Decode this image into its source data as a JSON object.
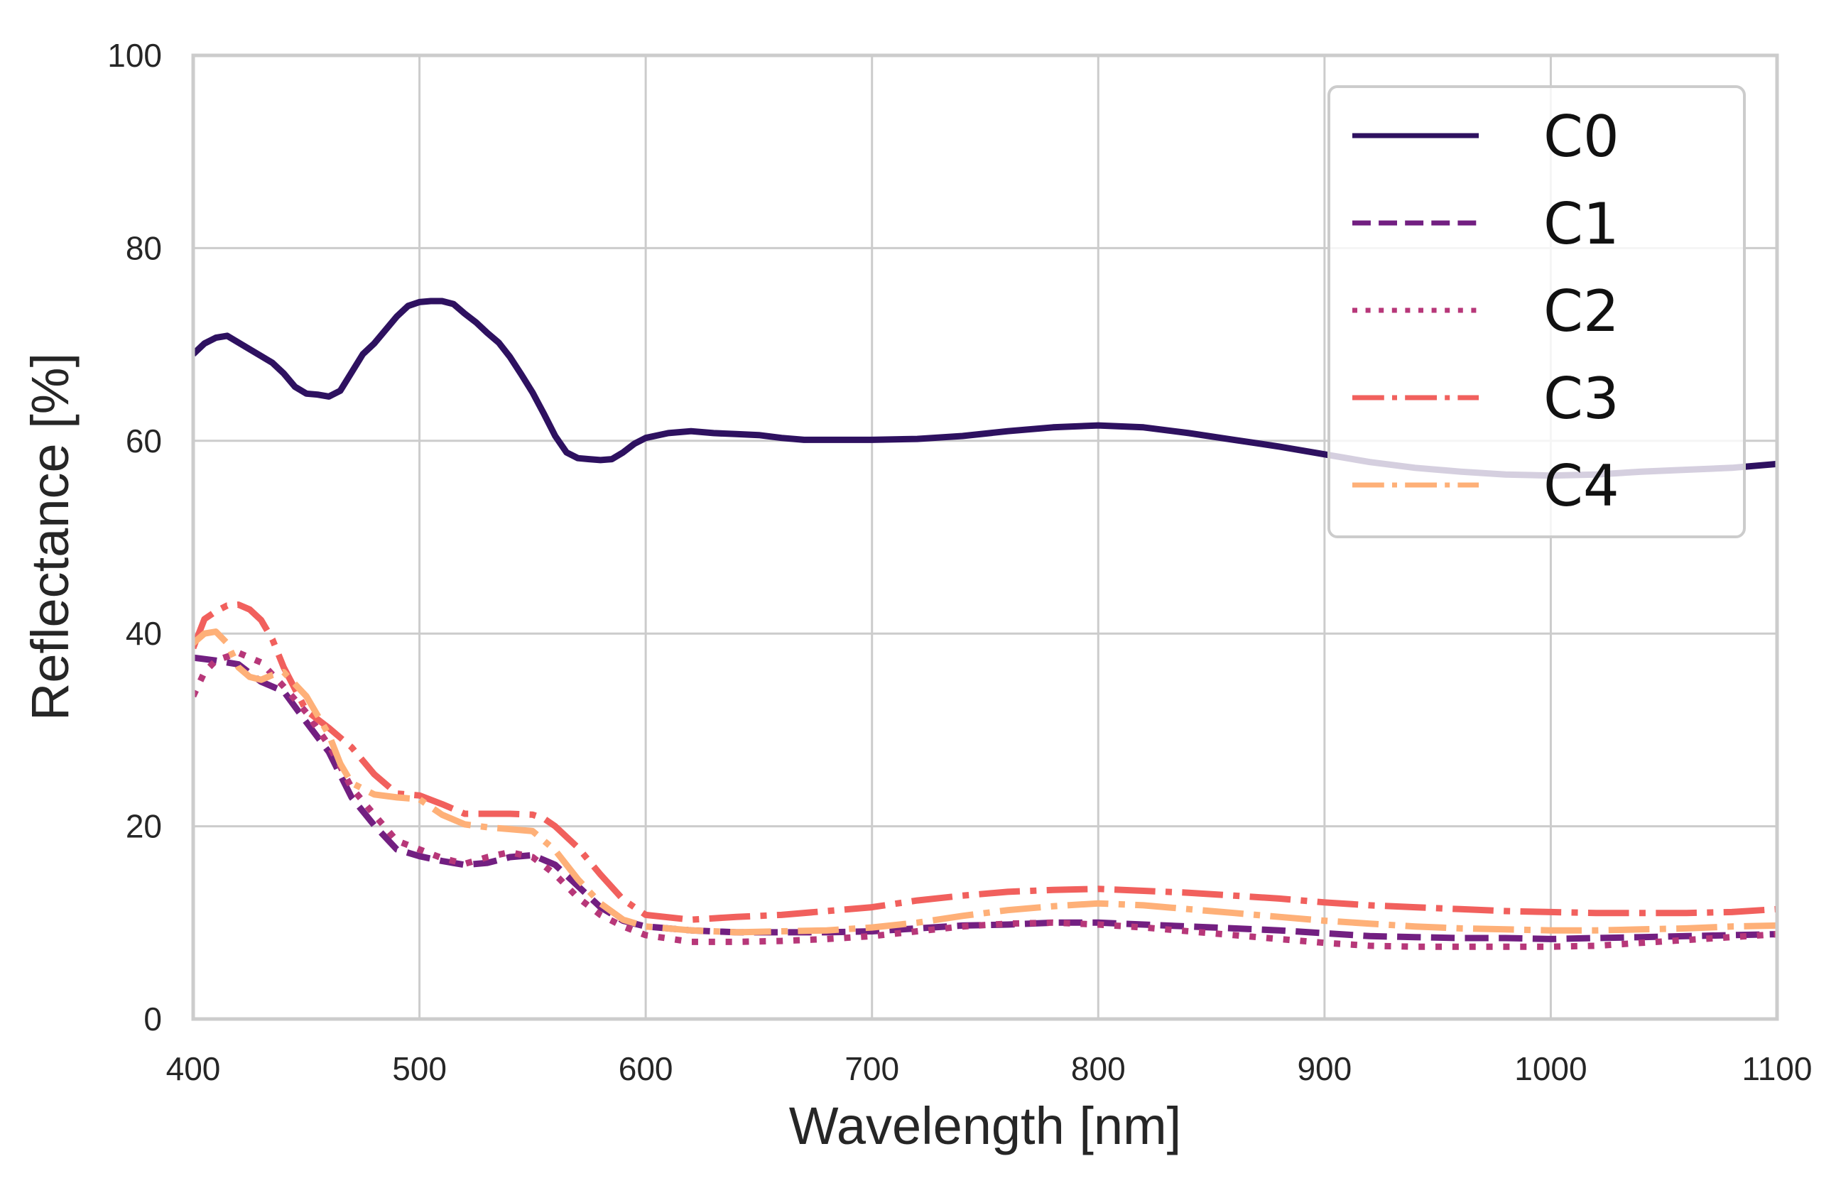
{
  "chart_data": {
    "type": "line",
    "title": "",
    "xlabel": "Wavelength [nm]",
    "ylabel": "Reflectance [%]",
    "xlim": [
      400,
      1100
    ],
    "ylim": [
      0,
      100
    ],
    "grid": true,
    "legend_position": "top-right",
    "xticks": [
      400,
      500,
      600,
      700,
      800,
      900,
      1000,
      1100
    ],
    "xtick_labels": [
      "400",
      "500",
      "600",
      "700",
      "800",
      "900",
      "1000",
      "1100"
    ],
    "yticks": [
      0,
      20,
      40,
      60,
      80,
      100
    ],
    "ytick_labels": [
      "0",
      "20",
      "40",
      "60",
      "80",
      "100"
    ],
    "series": [
      {
        "name": "C0",
        "color": "#2e1160",
        "linestyle": "solid",
        "x": [
          400,
          405,
          410,
          415,
          420,
          425,
          430,
          435,
          440,
          445,
          450,
          455,
          460,
          465,
          470,
          475,
          480,
          485,
          490,
          495,
          500,
          505,
          510,
          515,
          520,
          525,
          530,
          535,
          540,
          545,
          550,
          555,
          560,
          565,
          570,
          575,
          580,
          585,
          590,
          595,
          600,
          610,
          620,
          630,
          640,
          650,
          660,
          670,
          680,
          690,
          700,
          720,
          740,
          760,
          780,
          800,
          820,
          840,
          860,
          880,
          900,
          920,
          940,
          960,
          980,
          1000,
          1020,
          1040,
          1060,
          1080,
          1100
        ],
        "y": [
          69.0,
          70.1,
          70.7,
          70.9,
          70.2,
          69.5,
          68.8,
          68.1,
          67.0,
          65.6,
          64.9,
          64.8,
          64.6,
          65.2,
          67.1,
          69.0,
          70.1,
          71.5,
          72.9,
          74.0,
          74.4,
          74.5,
          74.5,
          74.2,
          73.2,
          72.3,
          71.2,
          70.2,
          68.7,
          66.9,
          65.0,
          62.8,
          60.5,
          58.8,
          58.2,
          58.1,
          58.0,
          58.1,
          58.8,
          59.7,
          60.3,
          60.8,
          61.0,
          60.8,
          60.7,
          60.6,
          60.3,
          60.1,
          60.1,
          60.1,
          60.1,
          60.2,
          60.5,
          61.0,
          61.4,
          61.6,
          61.4,
          60.8,
          60.1,
          59.4,
          58.6,
          57.8,
          57.2,
          56.8,
          56.5,
          56.4,
          56.5,
          56.8,
          57.0,
          57.2,
          57.6
        ]
      },
      {
        "name": "C1",
        "color": "#721f81",
        "linestyle": "dashed",
        "x": [
          400,
          410,
          420,
          430,
          440,
          450,
          460,
          470,
          480,
          490,
          500,
          510,
          520,
          530,
          540,
          550,
          560,
          570,
          580,
          590,
          600,
          620,
          640,
          660,
          680,
          700,
          720,
          740,
          760,
          780,
          800,
          820,
          840,
          860,
          880,
          900,
          920,
          940,
          960,
          980,
          1000,
          1020,
          1040,
          1060,
          1080,
          1100
        ],
        "y": [
          37.5,
          37.2,
          36.8,
          35.0,
          34.0,
          30.8,
          27.7,
          23.0,
          20.1,
          17.6,
          16.9,
          16.4,
          16.0,
          16.2,
          16.8,
          17.0,
          16.0,
          13.8,
          11.6,
          10.2,
          9.6,
          9.2,
          9.0,
          9.0,
          9.0,
          9.1,
          9.4,
          9.7,
          9.8,
          10.0,
          10.0,
          9.8,
          9.6,
          9.4,
          9.2,
          8.9,
          8.6,
          8.5,
          8.4,
          8.4,
          8.3,
          8.4,
          8.5,
          8.6,
          8.7,
          8.8
        ]
      },
      {
        "name": "C2",
        "color": "#b73779",
        "linestyle": "dotted",
        "x": [
          400,
          405,
          410,
          420,
          430,
          440,
          450,
          460,
          470,
          480,
          490,
          500,
          510,
          520,
          530,
          540,
          550,
          560,
          570,
          580,
          590,
          600,
          620,
          640,
          660,
          680,
          700,
          720,
          740,
          760,
          780,
          800,
          820,
          840,
          860,
          880,
          900,
          920,
          940,
          960,
          980,
          1000,
          1020,
          1040,
          1060,
          1080,
          1100
        ],
        "y": [
          33.5,
          36.0,
          37.2,
          38.0,
          37.0,
          34.5,
          31.8,
          28.4,
          24.0,
          21.2,
          18.5,
          17.6,
          16.7,
          16.1,
          16.8,
          17.3,
          16.8,
          15.0,
          12.6,
          10.8,
          9.6,
          8.7,
          8.0,
          8.0,
          8.1,
          8.3,
          8.6,
          9.1,
          9.6,
          9.9,
          10.0,
          9.8,
          9.5,
          9.1,
          8.7,
          8.3,
          7.9,
          7.6,
          7.5,
          7.5,
          7.5,
          7.5,
          7.6,
          7.9,
          8.2,
          8.5,
          8.8
        ]
      },
      {
        "name": "C3",
        "color": "#f1605d",
        "linestyle": "dashdot",
        "x": [
          400,
          405,
          410,
          415,
          420,
          425,
          430,
          435,
          440,
          450,
          460,
          470,
          480,
          490,
          500,
          510,
          520,
          530,
          540,
          550,
          555,
          560,
          570,
          580,
          590,
          600,
          620,
          640,
          660,
          680,
          700,
          720,
          740,
          760,
          780,
          800,
          820,
          840,
          860,
          880,
          900,
          920,
          940,
          960,
          980,
          1000,
          1020,
          1040,
          1060,
          1080,
          1100
        ],
        "y": [
          38.5,
          41.5,
          42.3,
          42.9,
          43.0,
          42.5,
          41.4,
          39.4,
          36.5,
          32.0,
          30.2,
          28.2,
          25.4,
          23.4,
          23.2,
          22.3,
          21.3,
          21.3,
          21.3,
          21.2,
          20.8,
          20.0,
          17.8,
          15.0,
          12.4,
          10.8,
          10.3,
          10.6,
          10.8,
          11.2,
          11.6,
          12.3,
          12.8,
          13.2,
          13.4,
          13.5,
          13.3,
          13.1,
          12.8,
          12.5,
          12.1,
          11.8,
          11.6,
          11.4,
          11.2,
          11.1,
          11.0,
          11.0,
          11.0,
          11.1,
          11.4
        ]
      },
      {
        "name": "C4",
        "color": "#feb078",
        "linestyle": "dashdot",
        "x": [
          400,
          405,
          410,
          415,
          420,
          425,
          430,
          435,
          440,
          450,
          460,
          465,
          470,
          480,
          490,
          500,
          510,
          520,
          530,
          540,
          550,
          560,
          570,
          580,
          590,
          600,
          620,
          640,
          660,
          680,
          700,
          720,
          740,
          760,
          780,
          800,
          820,
          840,
          860,
          880,
          900,
          920,
          940,
          960,
          980,
          1000,
          1020,
          1040,
          1060,
          1080,
          1100
        ],
        "y": [
          39.0,
          40.0,
          40.2,
          39.0,
          36.5,
          35.5,
          35.2,
          35.7,
          36.0,
          33.5,
          29.5,
          26.5,
          24.5,
          23.3,
          23.0,
          22.8,
          21.2,
          20.2,
          19.9,
          19.7,
          19.5,
          17.5,
          14.5,
          12.0,
          10.3,
          9.6,
          9.2,
          9.0,
          9.1,
          9.2,
          9.5,
          10.0,
          10.7,
          11.3,
          11.7,
          12.0,
          11.8,
          11.4,
          11.0,
          10.6,
          10.2,
          9.9,
          9.6,
          9.4,
          9.3,
          9.2,
          9.2,
          9.3,
          9.4,
          9.6,
          9.7
        ]
      }
    ]
  }
}
